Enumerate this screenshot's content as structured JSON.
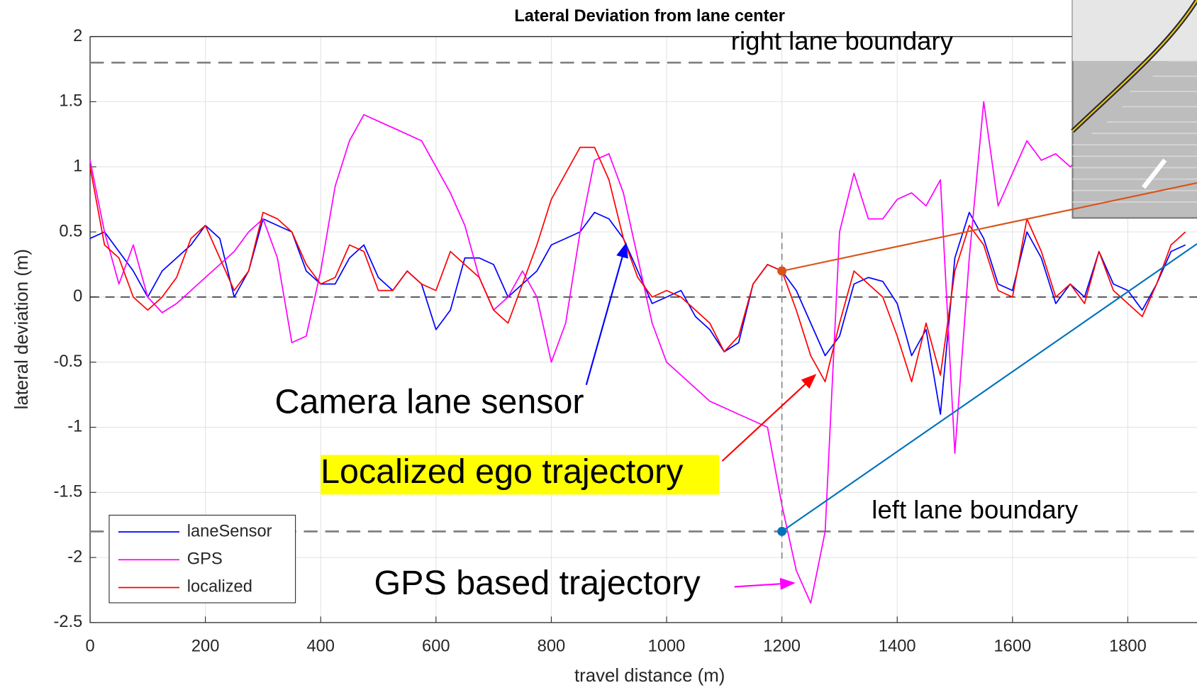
{
  "chart_data": {
    "type": "line",
    "title": "Lateral Deviation from lane center",
    "x_label": "travel distance (m)",
    "y_label": "lateral deviation (m)",
    "xlim": [
      0,
      1920
    ],
    "ylim": [
      -2.5,
      2
    ],
    "xticks": [
      0,
      200,
      400,
      600,
      800,
      1000,
      1200,
      1400,
      1600,
      1800
    ],
    "yticks": [
      2,
      1.5,
      1,
      0.5,
      0,
      -0.5,
      -1,
      -1.5,
      -2,
      -2.5
    ],
    "grid": true,
    "legend": "lower left",
    "x": [
      0,
      25,
      50,
      75,
      100,
      125,
      150,
      175,
      200,
      225,
      250,
      275,
      300,
      325,
      350,
      375,
      400,
      425,
      450,
      475,
      500,
      525,
      550,
      575,
      600,
      625,
      650,
      675,
      700,
      725,
      750,
      775,
      800,
      825,
      850,
      875,
      900,
      925,
      950,
      975,
      1000,
      1025,
      1050,
      1075,
      1100,
      1125,
      1150,
      1175,
      1200,
      1225,
      1250,
      1275,
      1300,
      1325,
      1350,
      1375,
      1400,
      1425,
      1450,
      1475,
      1500,
      1525,
      1550,
      1575,
      1600,
      1625,
      1650,
      1675,
      1700,
      1725,
      1750,
      1775,
      1800,
      1825,
      1850,
      1875,
      1900
    ],
    "series": [
      {
        "name": "laneSensor",
        "color": "#0000ff",
        "values": [
          0.45,
          0.5,
          0.35,
          0.2,
          0.0,
          0.2,
          0.3,
          0.4,
          0.55,
          0.45,
          0.0,
          0.2,
          0.6,
          0.55,
          0.5,
          0.2,
          0.1,
          0.1,
          0.3,
          0.4,
          0.15,
          0.05,
          0.2,
          0.1,
          -0.25,
          -0.1,
          0.3,
          0.3,
          0.25,
          0.0,
          0.1,
          0.2,
          0.4,
          0.45,
          0.5,
          0.65,
          0.6,
          0.45,
          0.2,
          -0.05,
          0.0,
          0.05,
          -0.15,
          -0.25,
          -0.42,
          -0.35,
          0.1,
          0.25,
          0.2,
          0.05,
          -0.2,
          -0.45,
          -0.3,
          0.1,
          0.15,
          0.12,
          -0.05,
          -0.45,
          -0.25,
          -0.9,
          0.3,
          0.65,
          0.45,
          0.1,
          0.05,
          0.5,
          0.3,
          -0.05,
          0.1,
          0.0,
          0.35,
          0.1,
          0.05,
          -0.1,
          0.1,
          0.35,
          0.4
        ]
      },
      {
        "name": "GPS",
        "color": "#ff00ff",
        "values": [
          1.05,
          0.5,
          0.1,
          0.4,
          0.0,
          -0.12,
          -0.05,
          0.05,
          0.15,
          0.25,
          0.35,
          0.5,
          0.6,
          0.3,
          -0.35,
          -0.3,
          0.2,
          0.85,
          1.2,
          1.4,
          1.35,
          1.3,
          1.25,
          1.2,
          1.0,
          0.8,
          0.55,
          0.15,
          -0.1,
          0.0,
          0.2,
          0.0,
          -0.5,
          -0.2,
          0.5,
          1.05,
          1.1,
          0.8,
          0.3,
          -0.2,
          -0.5,
          -0.6,
          -0.7,
          -0.8,
          -0.85,
          -0.9,
          -0.95,
          -1.0,
          -1.6,
          -2.1,
          -2.35,
          -1.8,
          0.5,
          0.95,
          0.6,
          0.6,
          0.75,
          0.8,
          0.7,
          0.9,
          -1.2,
          0.3,
          1.5,
          0.7,
          0.95,
          1.2,
          1.05,
          1.1,
          1.0,
          1.1,
          1.0,
          1.1,
          1.2,
          1.15,
          1.1,
          1.2,
          1.25
        ]
      },
      {
        "name": "localized",
        "color": "#ff0000",
        "values": [
          1.0,
          0.4,
          0.3,
          0.0,
          -0.1,
          0.0,
          0.15,
          0.45,
          0.55,
          0.3,
          0.05,
          0.2,
          0.65,
          0.6,
          0.5,
          0.25,
          0.1,
          0.15,
          0.4,
          0.35,
          0.05,
          0.05,
          0.2,
          0.1,
          0.05,
          0.35,
          0.25,
          0.15,
          -0.1,
          -0.2,
          0.1,
          0.4,
          0.75,
          0.95,
          1.15,
          1.15,
          0.9,
          0.45,
          0.15,
          0.0,
          0.05,
          0.0,
          -0.1,
          -0.2,
          -0.42,
          -0.3,
          0.1,
          0.25,
          0.2,
          -0.1,
          -0.45,
          -0.65,
          -0.2,
          0.2,
          0.1,
          0.0,
          -0.3,
          -0.65,
          -0.2,
          -0.6,
          0.2,
          0.55,
          0.4,
          0.05,
          0.0,
          0.6,
          0.35,
          0.0,
          0.1,
          -0.05,
          0.35,
          0.05,
          -0.05,
          -0.15,
          0.1,
          0.4,
          0.5
        ]
      }
    ],
    "boundaries": [
      {
        "value": 1.8,
        "label": "right lane boundary"
      },
      {
        "value": -1.8,
        "label": "left lane boundary"
      }
    ],
    "highlight_points": [
      {
        "x": 1200,
        "y": 0.2,
        "color": "#d95319"
      },
      {
        "x": 1200,
        "y": -1.8,
        "color": "#0072bd"
      }
    ],
    "annotations": [
      "Camera lane sensor",
      "Localized ego trajectory",
      "GPS based trajectory"
    ]
  }
}
